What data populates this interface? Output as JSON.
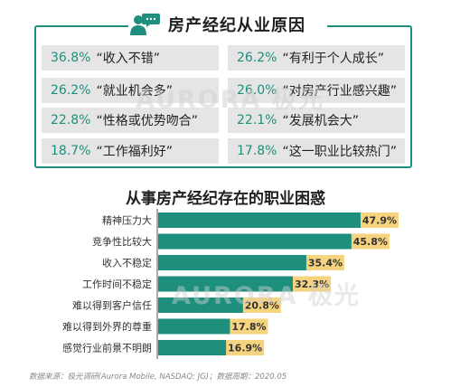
{
  "header": {
    "title": "房产经纪从业原因",
    "icon": "chat-person-icon"
  },
  "reasons": [
    {
      "pct": "36.8%",
      "text": "“收入不错”"
    },
    {
      "pct": "26.2%",
      "text": "“有利于个人成长”"
    },
    {
      "pct": "26.2%",
      "text": "“就业机会多”"
    },
    {
      "pct": "26.0%",
      "text": "“对房产行业感兴趣”"
    },
    {
      "pct": "22.8%",
      "text": "“性格或优势吻合”"
    },
    {
      "pct": "22.1%",
      "text": "“发展机会大”"
    },
    {
      "pct": "18.7%",
      "text": "“工作福利好”"
    },
    {
      "pct": "17.8%",
      "text": "“这一职业比较热门”"
    }
  ],
  "watermark": "AURORA 极光",
  "chart_data": {
    "type": "bar",
    "orientation": "horizontal",
    "title": "从事房产经纪存在的职业困惑",
    "categories": [
      "精神压力大",
      "竞争性比较大",
      "收入不稳定",
      "工作时间不稳定",
      "难以得到客户信任",
      "难以得到外界的尊重",
      "感觉行业前景不明朗"
    ],
    "values": [
      47.9,
      45.8,
      35.4,
      32.3,
      20.8,
      17.8,
      16.9
    ],
    "value_labels": [
      "47.9%",
      "45.8%",
      "35.4%",
      "32.3%",
      "20.8%",
      "17.8%",
      "16.9%"
    ],
    "xlim": [
      0,
      50
    ],
    "bar_color": "#1f8f7d",
    "label_bg_color": "#f6d37e"
  },
  "source": "数据来源：极光调研(Aurora Mobile, NASDAQ: JG)；数据周期：2020.05",
  "colors": {
    "accent": "#1f8f7d",
    "box": "#e5e5e5",
    "label_bg": "#f6d37e"
  }
}
